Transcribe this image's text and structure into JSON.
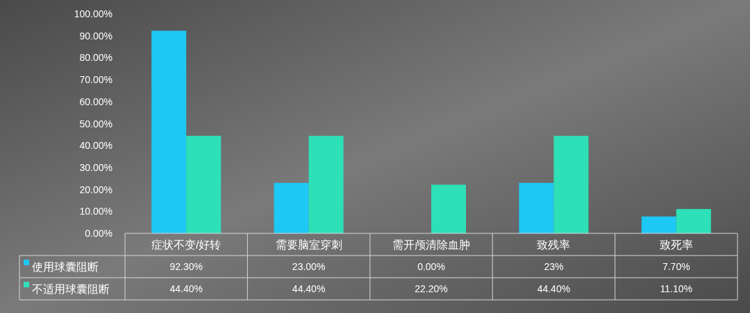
{
  "chart_data": {
    "type": "bar",
    "categories": [
      "症状不变/好转",
      "需要脑室穿刺",
      "需开颅清除血肿",
      "致残率",
      "致死率"
    ],
    "series": [
      {
        "name": "使用球囊阻断",
        "color": "#1ec8f5",
        "values": [
          92.3,
          23,
          0,
          23,
          7.7
        ],
        "value_labels": [
          "92.30%",
          "23.00%",
          "0.00%",
          "23%",
          "7.70%"
        ]
      },
      {
        "name": "不适用球囊阻断",
        "color": "#2ee0b8",
        "values": [
          44.4,
          44.4,
          22.2,
          44.4,
          11.1
        ],
        "value_labels": [
          "44.40%",
          "44.40%",
          "22.20%",
          "44.40%",
          "11.10%"
        ]
      }
    ],
    "legend": "bottom left",
    "ylim": [
      0,
      100
    ],
    "yticks": [
      {
        "value": 0,
        "label": "0.00%"
      },
      {
        "value": 10,
        "label": "10.00%"
      },
      {
        "value": 20,
        "label": "20.00%"
      },
      {
        "value": 30,
        "label": "30.00%"
      },
      {
        "value": 40,
        "label": "40.00%"
      },
      {
        "value": 50,
        "label": "50.00%"
      },
      {
        "value": 60,
        "label": "60.00%"
      },
      {
        "value": 70,
        "label": "70.00%"
      },
      {
        "value": 80,
        "label": "80.00%"
      },
      {
        "value": 90,
        "label": "90.00%"
      },
      {
        "value": 100,
        "label": "100.00%"
      }
    ]
  }
}
